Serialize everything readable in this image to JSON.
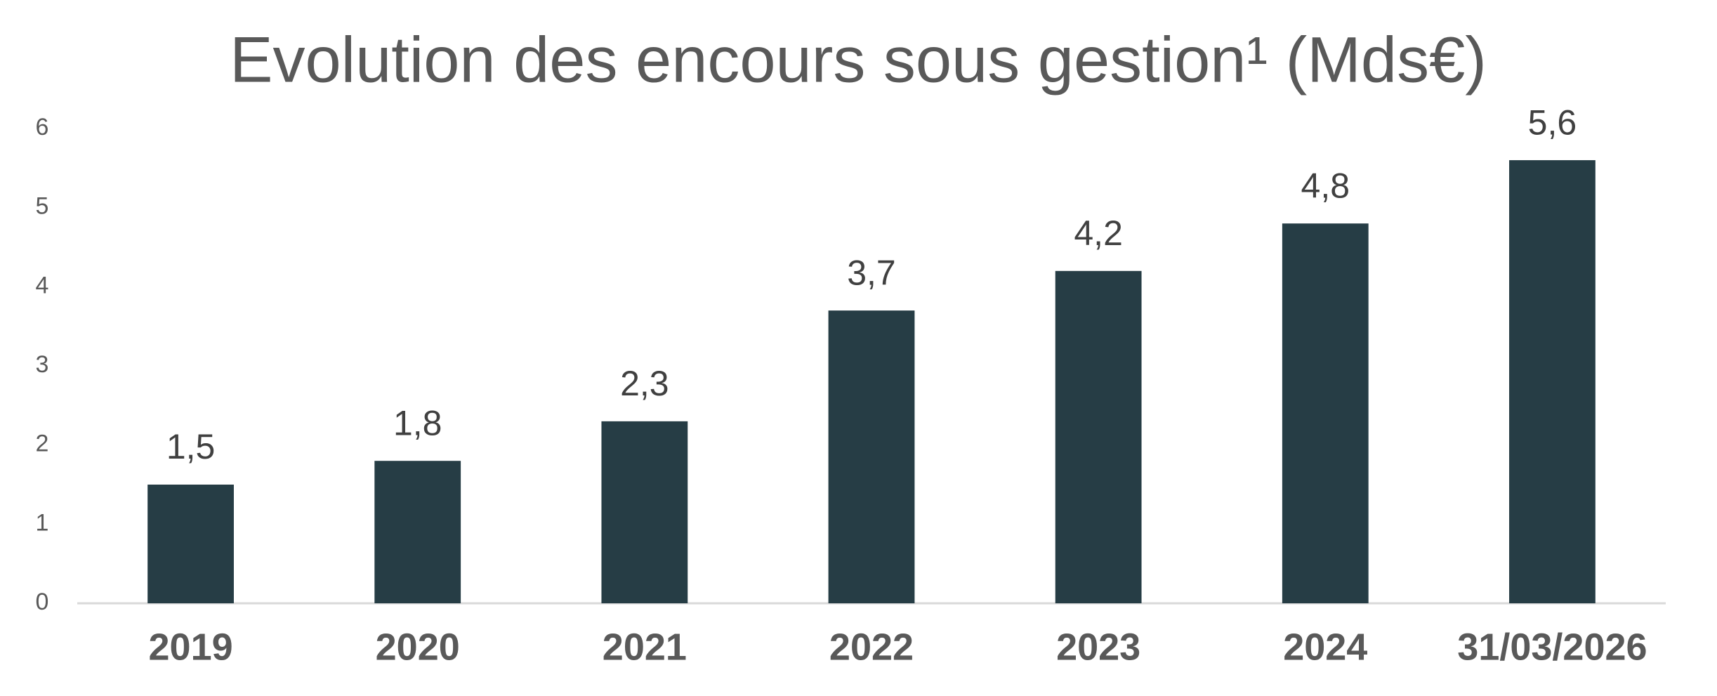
{
  "chart_data": {
    "type": "bar",
    "title": "Evolution des encours sous gestion¹ (Mds€)",
    "categories": [
      "2019",
      "2020",
      "2021",
      "2022",
      "2023",
      "2024",
      "31/03/2026"
    ],
    "values": [
      1.5,
      1.8,
      2.3,
      3.7,
      4.2,
      4.8,
      5.6
    ],
    "value_labels": [
      "1,5",
      "1,8",
      "2,3",
      "3,7",
      "4,2",
      "4,8",
      "5,6"
    ],
    "color": "#263d45",
    "ylim": [
      0,
      6
    ],
    "yticks": [
      0,
      1,
      2,
      3,
      4,
      5,
      6
    ],
    "grid": false
  }
}
